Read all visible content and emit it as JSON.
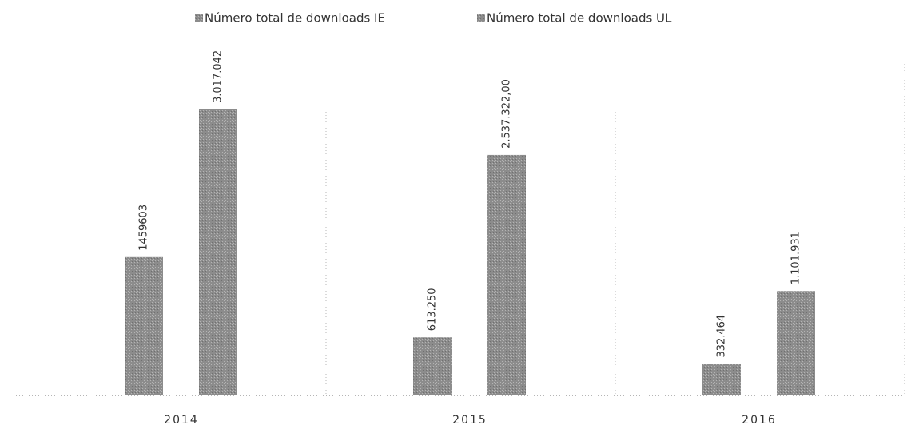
{
  "chart_data": {
    "type": "bar",
    "categories": [
      "2014",
      "2015",
      "2016"
    ],
    "series": [
      {
        "name": "Número total de downloads IE",
        "color": "#8c8c8c",
        "values": [
          1459603,
          613250,
          332464
        ],
        "value_labels": [
          "1459603",
          "613.250",
          "332.464"
        ]
      },
      {
        "name": "Número total de downloads UL",
        "color": "#8c8c8c",
        "values": [
          3017042,
          2537322,
          1101931
        ],
        "value_labels": [
          "3.017.042",
          "2.537.322,00",
          "1.101.931"
        ]
      }
    ],
    "legend": "top"
  }
}
